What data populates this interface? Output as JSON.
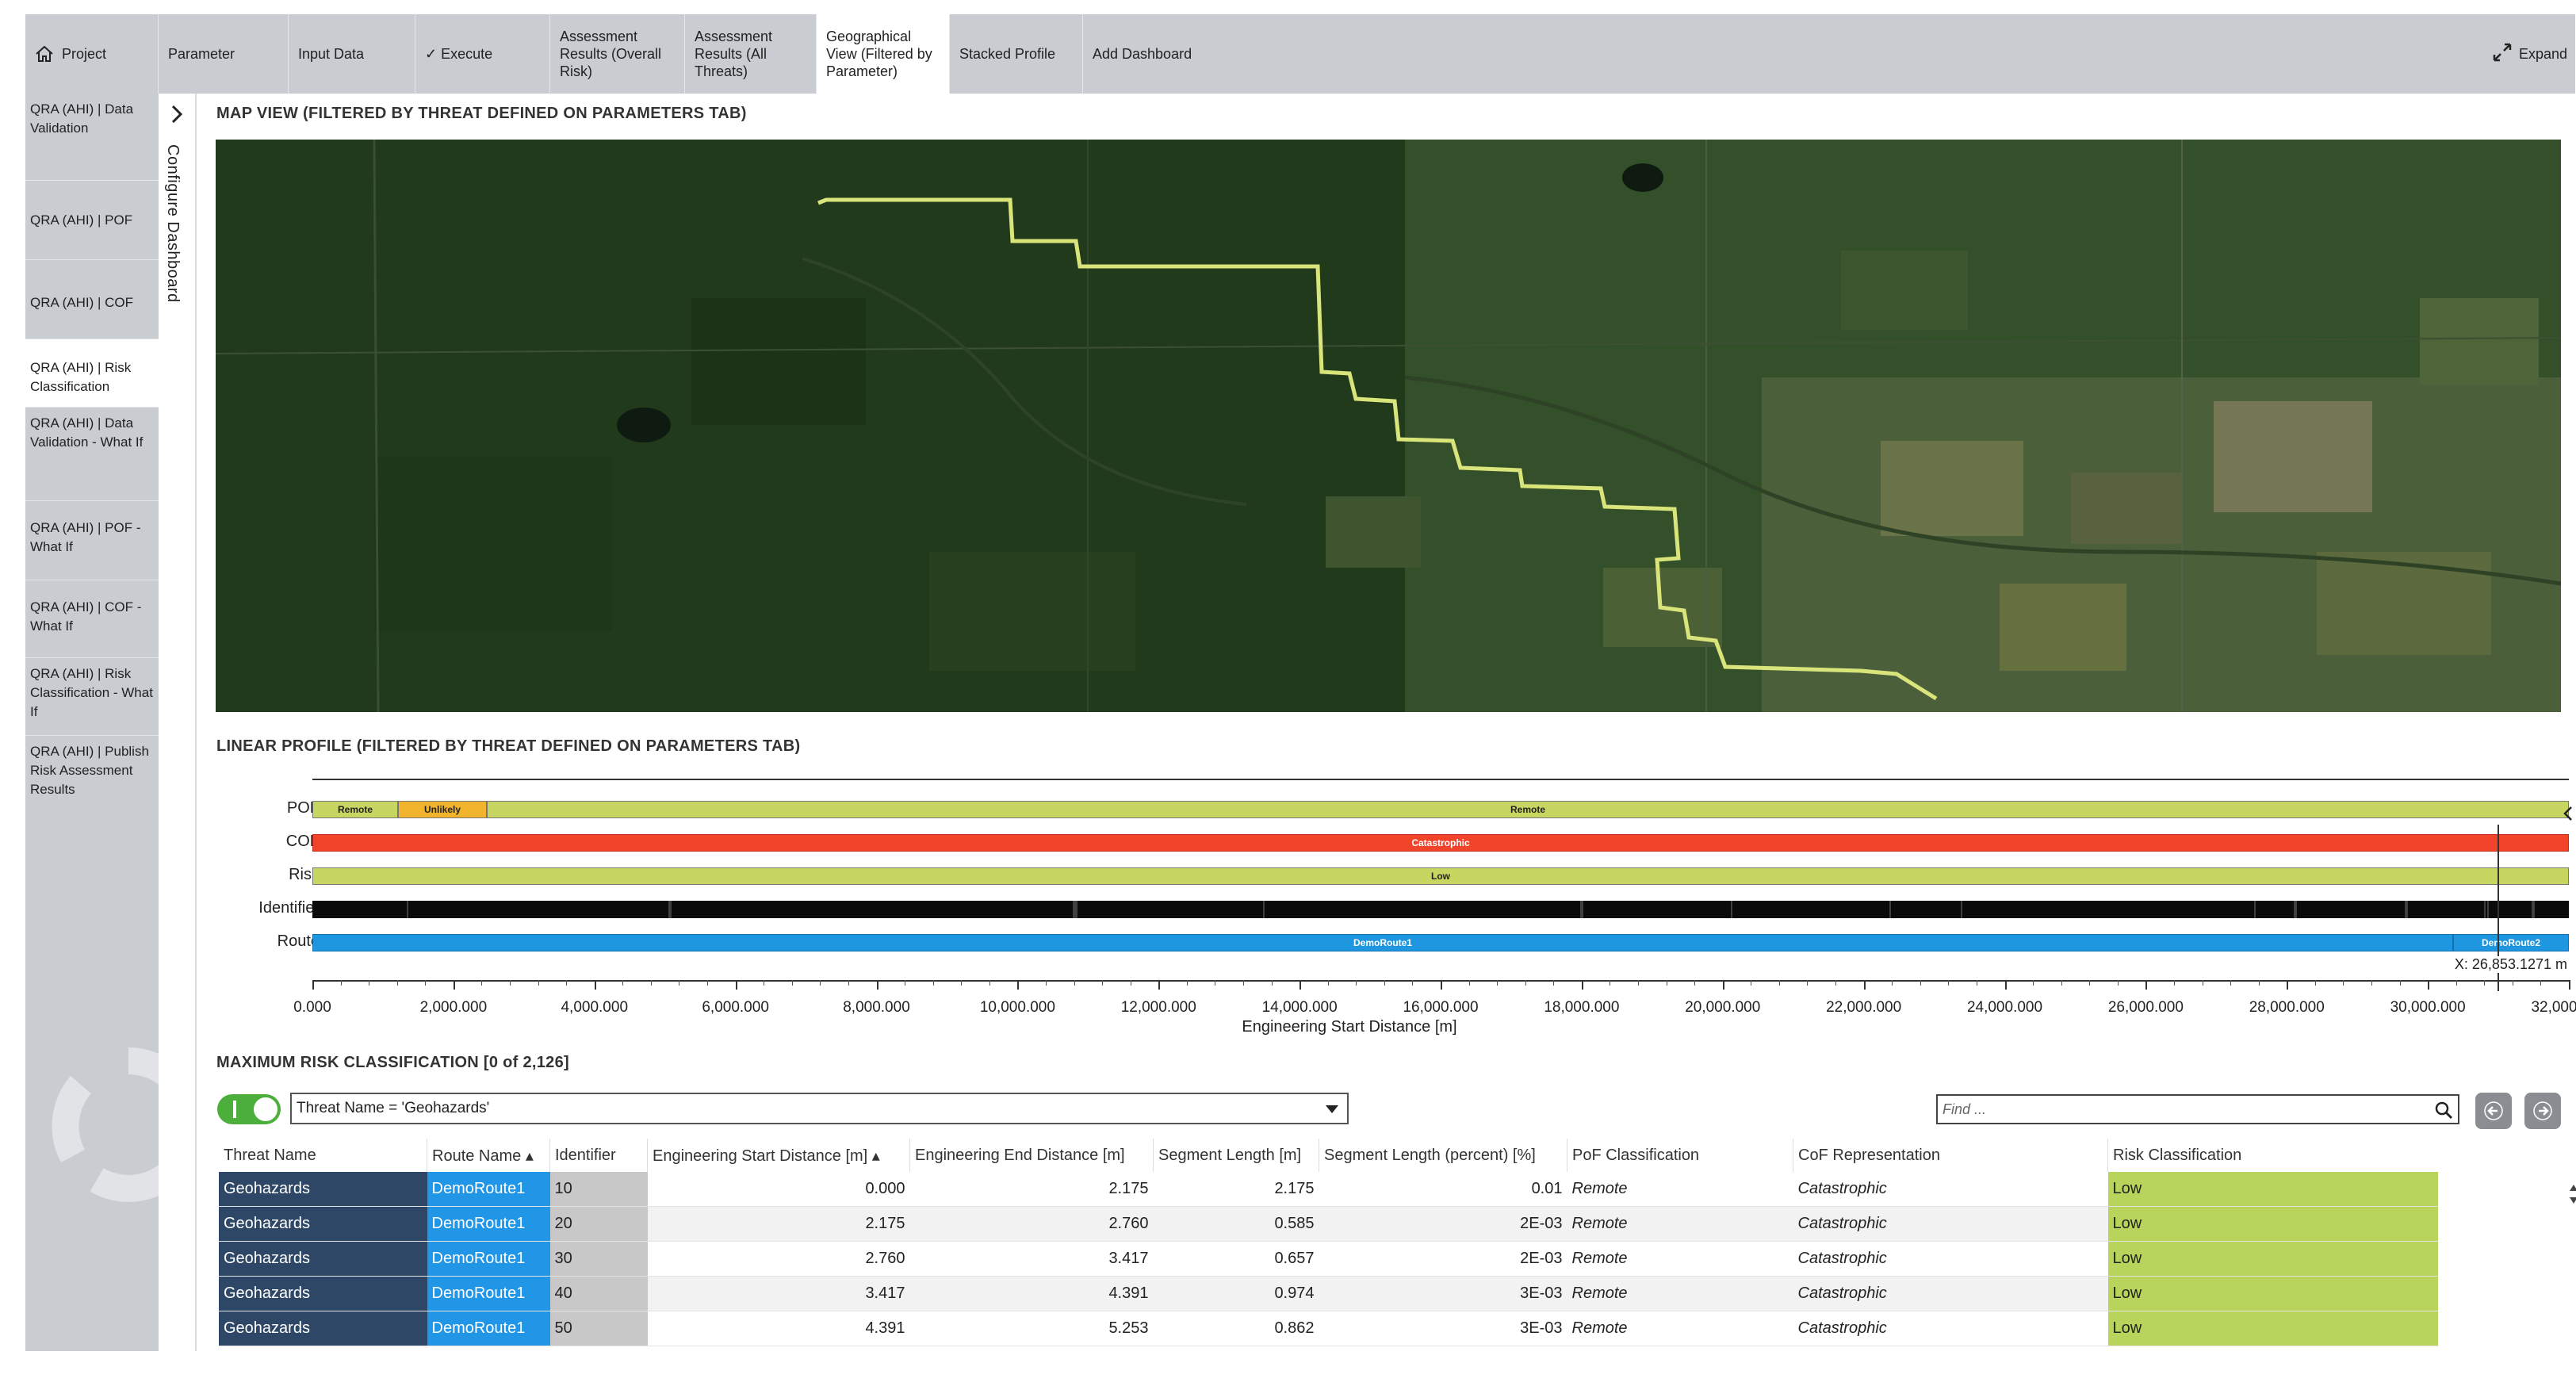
{
  "tabs": [
    {
      "label": "Project",
      "icon": "home-icon"
    },
    {
      "label": "Parameter"
    },
    {
      "label": "Input Data"
    },
    {
      "label": "✓ Execute"
    },
    {
      "label": "Assessment Results (Overall Risk)"
    },
    {
      "label": "Assessment Results (All Threats)"
    },
    {
      "label": "Geographical View (Filtered by Parameter)",
      "active": true
    },
    {
      "label": "Stacked Profile"
    },
    {
      "label": "Add Dashboard"
    }
  ],
  "expand_label": "Expand",
  "sidebar": {
    "items": [
      {
        "label": "QRA (AHI) | Data Validation"
      },
      {
        "label": "QRA (AHI) | POF"
      },
      {
        "label": "QRA (AHI) | COF"
      },
      {
        "label": "QRA (AHI) | Risk Classification",
        "active": true
      },
      {
        "label": "QRA (AHI) | Data Validation - What If"
      },
      {
        "label": "QRA (AHI) | POF - What If"
      },
      {
        "label": "QRA (AHI) | COF - What If"
      },
      {
        "label": "QRA (AHI) | Risk Classification - What If"
      },
      {
        "label": "QRA (AHI) | Publish Risk Assessment Results"
      }
    ],
    "configure_label": "Configure Dashboard"
  },
  "map": {
    "title": "MAP VIEW (FILTERED BY THREAT DEFINED ON PARAMETERS TAB)",
    "route_color": "#d9e47a"
  },
  "profile": {
    "title": "LINEAR PROFILE (FILTERED BY THREAT DEFINED ON PARAMETERS TAB)",
    "rows": {
      "pof": {
        "label": "POF",
        "segments": [
          "Remote",
          "Unlikely",
          "Remote"
        ]
      },
      "cof": {
        "label": "COF",
        "segments": [
          "Catastrophic"
        ]
      },
      "risk": {
        "label": "Risk",
        "segments": [
          "Low"
        ]
      },
      "identifier": {
        "label": "Identifier"
      },
      "route": {
        "label": "Route",
        "segments": [
          "DemoRoute1",
          "DemoRoute2"
        ]
      }
    },
    "cursor_readout": "X: 26,853.1271 m",
    "ticks": [
      "0.000",
      "2,000.000",
      "4,000.000",
      "6,000.000",
      "8,000.000",
      "10,000.000",
      "12,000.000",
      "14,000.000",
      "16,000.000",
      "18,000.000",
      "20,000.000",
      "22,000.000",
      "24,000.000",
      "26,000.000",
      "28,000.000",
      "30,000.000",
      "32,000.000"
    ],
    "axis_label": "Engineering Start Distance [m]",
    "colors": {
      "remote": "#c6d660",
      "unlikely": "#f2b42c",
      "catastrophic": "#f2432b",
      "low": "#c6d660",
      "route": "#1f97e0"
    }
  },
  "table": {
    "title": "MAXIMUM RISK CLASSIFICATION [0 of 2,126]",
    "filter_value": "Threat Name = 'Geohazards'",
    "find_placeholder": "Find ...",
    "columns": [
      "Threat Name",
      "Route Name ▴",
      "Identifier",
      "Engineering Start Distance [m] ▴",
      "Engineering End Distance [m]",
      "Segment Length [m]",
      "Segment Length (percent) [%]",
      "PoF Classification",
      "CoF Representation",
      "Risk Classification"
    ],
    "rows": [
      [
        "Geohazards",
        "DemoRoute1",
        "10",
        "0.000",
        "2.175",
        "2.175",
        "0.01",
        "Remote",
        "Catastrophic",
        "Low"
      ],
      [
        "Geohazards",
        "DemoRoute1",
        "20",
        "2.175",
        "2.760",
        "0.585",
        "2E-03",
        "Remote",
        "Catastrophic",
        "Low"
      ],
      [
        "Geohazards",
        "DemoRoute1",
        "30",
        "2.760",
        "3.417",
        "0.657",
        "2E-03",
        "Remote",
        "Catastrophic",
        "Low"
      ],
      [
        "Geohazards",
        "DemoRoute1",
        "40",
        "3.417",
        "4.391",
        "0.974",
        "3E-03",
        "Remote",
        "Catastrophic",
        "Low"
      ],
      [
        "Geohazards",
        "DemoRoute1",
        "50",
        "4.391",
        "5.253",
        "0.862",
        "3E-03",
        "Remote",
        "Catastrophic",
        "Low"
      ]
    ]
  }
}
